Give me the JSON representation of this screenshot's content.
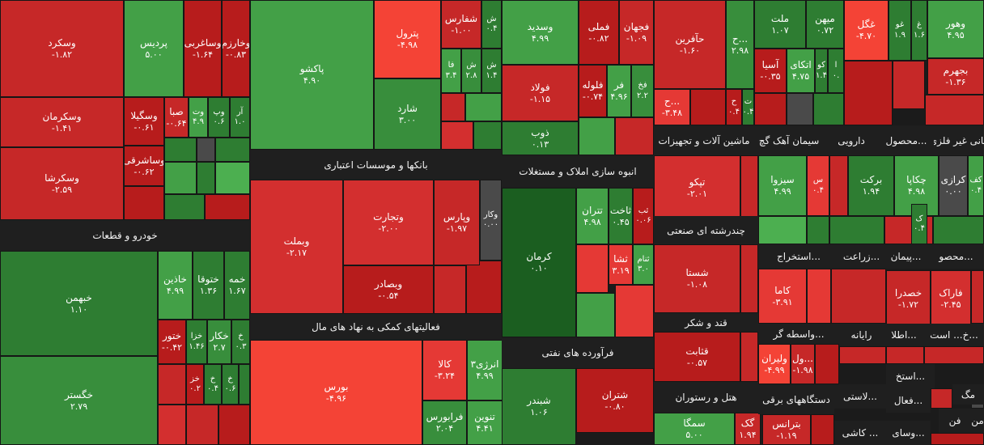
{
  "sectors": [
    {
      "label": "خودرو و قطعات",
      "name": "sector-auto"
    },
    {
      "label": "بانکها و موسسات اعتباری",
      "name": "sector-banks"
    },
    {
      "label": "انبوه سازی املاک و مستغلات",
      "name": "sector-realestate"
    },
    {
      "label": "فعالیتهای کمکی به نهاد های مال",
      "name": "sector-financial-aux"
    },
    {
      "label": "فرآورده های نفتی",
      "name": "sector-petroleum-products"
    },
    {
      "label": "ماشین آلات و تجهیزات",
      "name": "sector-machinery"
    },
    {
      "label": "سیمان آهک گچ",
      "name": "sector-cement"
    },
    {
      "label": "دارویی",
      "name": "sector-pharma"
    },
    {
      "label": "محصول...",
      "name": "sector-products"
    },
    {
      "label": "کانی غیر فلزی",
      "name": "sector-nonmetal-minerals"
    },
    {
      "label": "چندرشته ای صنعتی",
      "name": "sector-multi-industry"
    },
    {
      "label": "استخراج...",
      "name": "sector-mining"
    },
    {
      "label": "زراعت...",
      "name": "sector-agriculture"
    },
    {
      "label": "پیمان...",
      "name": "sector-contracting"
    },
    {
      "label": "محصو...",
      "name": "sector-products-2"
    },
    {
      "label": "قند و شکر",
      "name": "sector-sugar"
    },
    {
      "label": "واسطه گر...",
      "name": "sector-intermediation"
    },
    {
      "label": "رایانه",
      "name": "sector-computer"
    },
    {
      "label": "اطلا...",
      "name": "sector-information"
    },
    {
      "label": "خ... است...",
      "name": "sector-misc"
    },
    {
      "label": "هتل و رستوران",
      "name": "sector-hotel"
    },
    {
      "label": "دستگاههای برقی",
      "name": "sector-electrical"
    },
    {
      "label": "لاستی...",
      "name": "sector-rubber"
    },
    {
      "label": "استخ...",
      "name": "sector-mining-2"
    },
    {
      "label": "فعال...",
      "name": "sector-activity"
    },
    {
      "label": "کاشی ...",
      "name": "sector-tile"
    },
    {
      "label": "وسای...",
      "name": "sector-equipment"
    },
    {
      "label": "مگ",
      "name": "sector-mg"
    },
    {
      "label": "فن",
      "name": "sector-fn"
    },
    {
      "label": "من",
      "name": "sector-mn"
    }
  ],
  "tiles": [
    {
      "name": "وسکرد",
      "value": "-۱.۸۲",
      "color": "#c62828"
    },
    {
      "name": "وسکرمان",
      "value": "-۱.۴۱",
      "color": "#c62828"
    },
    {
      "name": "وسکرشا",
      "value": "-۲.۵۹",
      "color": "#c62828"
    },
    {
      "name": "پردیس",
      "value": "۵.۰۰",
      "color": "#43a047"
    },
    {
      "name": "وساغربی",
      "value": "-۱.۶۴",
      "color": "#b71c1c"
    },
    {
      "name": "وخارزم",
      "value": "-۰.۸۳",
      "color": "#b71c1c"
    },
    {
      "name": "وسگیلا",
      "value": "-۰.۶۱",
      "color": "#b71c1c"
    },
    {
      "name": "صبا",
      "value": "-۰.۶۴",
      "color": "#c62828"
    },
    {
      "name": "وت",
      "value": "۴.۹",
      "color": "#43a047"
    },
    {
      "name": "وپ",
      "value": "۰.۶",
      "color": "#2e7d32"
    },
    {
      "name": "آر",
      "value": "۱.۰",
      "color": "#2e7d32"
    },
    {
      "name": "وساشرقی",
      "value": "-۰.۶۲",
      "color": "#b71c1c"
    },
    {
      "name": "خبهمن",
      "value": "۱.۱۰",
      "color": "#2e7d32"
    },
    {
      "name": "خاذین",
      "value": "۴.۹۹",
      "color": "#43a047"
    },
    {
      "name": "ختوقا",
      "value": "۱.۳۶",
      "color": "#2e7d32"
    },
    {
      "name": "خمه",
      "value": "۱.۶۷",
      "color": "#2e7d32"
    },
    {
      "name": "ختور",
      "value": "-۰.۴۲",
      "color": "#b71c1c"
    },
    {
      "name": "خزا",
      "value": "۱.۴۶",
      "color": "#2e7d32"
    },
    {
      "name": "خکار",
      "value": "۲.۷",
      "color": "#388e3c"
    },
    {
      "name": "خ",
      "value": "۰.۳",
      "color": "#2e7d32"
    },
    {
      "name": "خگستر",
      "value": "۲.۷۹",
      "color": "#388e3c"
    },
    {
      "name": "خز",
      "value": "۰.۲",
      "color": "#b71c1c"
    },
    {
      "name": "خ",
      "value": "۰.۴",
      "color": "#2e7d32"
    },
    {
      "name": "خ",
      "value": "۰.۶",
      "color": "#2e7d32"
    },
    {
      "name": "پاکشو",
      "value": "۴.۹۰",
      "color": "#43a047"
    },
    {
      "name": "پترول",
      "value": "-۴.۹۸",
      "color": "#f44336"
    },
    {
      "name": "شارد",
      "value": "۳.۰۰",
      "color": "#388e3c"
    },
    {
      "name": "شفارس",
      "value": "-۱.۰۰",
      "color": "#c62828"
    },
    {
      "name": "ش",
      "value": "۰.۴",
      "color": "#2e7d32"
    },
    {
      "name": "فا",
      "value": "۳.۴",
      "color": "#43a047"
    },
    {
      "name": "ش",
      "value": "۲.۸",
      "color": "#388e3c"
    },
    {
      "name": "ش",
      "value": "۱.۴",
      "color": "#2e7d32"
    },
    {
      "name": "وبملت",
      "value": "-۲.۱۷",
      "color": "#d32f2f"
    },
    {
      "name": "وتجارت",
      "value": "-۲.۰۰",
      "color": "#d32f2f"
    },
    {
      "name": "وپارس",
      "value": "-۱.۹۷",
      "color": "#c62828"
    },
    {
      "name": "وکار",
      "value": "۰.۰۰",
      "color": "#4a4a4a"
    },
    {
      "name": "وبصادر",
      "value": "-۰.۵۴",
      "color": "#b71c1c"
    },
    {
      "name": "وسدید",
      "value": "۴.۹۹",
      "color": "#43a047"
    },
    {
      "name": "فملی",
      "value": "-۰.۸۲",
      "color": "#b71c1c"
    },
    {
      "name": "فجهان",
      "value": "-۱.۰۹",
      "color": "#c62828"
    },
    {
      "name": "فولاد",
      "value": "-۱.۱۵",
      "color": "#c62828"
    },
    {
      "name": "فلوله",
      "value": "-۰.۷۴",
      "color": "#b71c1c"
    },
    {
      "name": "فر",
      "value": "۴.۹۶",
      "color": "#43a047"
    },
    {
      "name": "فخ",
      "value": "۲.۲",
      "color": "#388e3c"
    },
    {
      "name": "ذوب",
      "value": "۰.۱۳",
      "color": "#2e7d32"
    },
    {
      "name": "حآفرین",
      "value": "-۱.۶۰",
      "color": "#c62828"
    },
    {
      "name": "ح...",
      "value": "۲.۹۸",
      "color": "#388e3c"
    },
    {
      "name": "ح...",
      "value": "-۳.۴۸",
      "color": "#e53935"
    },
    {
      "name": "ح",
      "value": "۰.۴",
      "color": "#b71c1c"
    },
    {
      "name": "ت",
      "value": "۰.۴",
      "color": "#2e7d32"
    },
    {
      "name": "ملت",
      "value": "۱.۰۷",
      "color": "#2e7d32"
    },
    {
      "name": "میهن",
      "value": "۰.۷۲",
      "color": "#2e7d32"
    },
    {
      "name": "آسیا",
      "value": "-۰.۳۵",
      "color": "#b71c1c"
    },
    {
      "name": "اتکای",
      "value": "۴.۷۵",
      "color": "#43a047"
    },
    {
      "name": "کو",
      "value": "۱.۴",
      "color": "#2e7d32"
    },
    {
      "name": "ا",
      "value": "۰.",
      "color": "#2e7d32"
    },
    {
      "name": "غگل",
      "value": "-۴.۷۰",
      "color": "#f44336"
    },
    {
      "name": "غو",
      "value": "۱.۹",
      "color": "#2e7d32"
    },
    {
      "name": "غ",
      "value": "۱.۶",
      "color": "#2e7d32"
    },
    {
      "name": "وهور",
      "value": "۴.۹۵",
      "color": "#43a047"
    },
    {
      "name": "بجهرم",
      "value": "-۱.۳۶",
      "color": "#c62828"
    },
    {
      "name": "کرمان",
      "value": "۰.۱۰",
      "color": "#1b5e20"
    },
    {
      "name": "تتران",
      "value": "۴.۹۸",
      "color": "#43a047"
    },
    {
      "name": "ثاخت",
      "value": "۰.۴۵",
      "color": "#2e7d32"
    },
    {
      "name": "ثب",
      "value": "۰.۰۶",
      "color": "#b71c1c"
    },
    {
      "name": "ثشا",
      "value": "۳.۱۹",
      "color": "#e53935"
    },
    {
      "name": "ثنام",
      "value": "۳.۰",
      "color": "#43a047"
    },
    {
      "name": "بورس",
      "value": "-۴.۹۶",
      "color": "#f44336"
    },
    {
      "name": "کالا",
      "value": "-۳.۲۴",
      "color": "#e53935"
    },
    {
      "name": "انرژی۳",
      "value": "۴.۹۹",
      "color": "#43a047"
    },
    {
      "name": "فرابورس",
      "value": "۲.۰۴",
      "color": "#388e3c"
    },
    {
      "name": "تنوین",
      "value": "۴.۴۱",
      "color": "#43a047"
    },
    {
      "name": "شبندر",
      "value": "۱.۰۶",
      "color": "#2e7d32"
    },
    {
      "name": "شتران",
      "value": "-۰.۸۰",
      "color": "#b71c1c"
    },
    {
      "name": "تپکو",
      "value": "-۲.۰۱",
      "color": "#d32f2f"
    },
    {
      "name": "سیزوا",
      "value": "۴.۹۹",
      "color": "#43a047"
    },
    {
      "name": "س",
      "value": "۰.۴",
      "color": "#e53935"
    },
    {
      "name": "برکت",
      "value": "۱.۹۴",
      "color": "#2e7d32"
    },
    {
      "name": "چکاپا",
      "value": "۴.۹۸",
      "color": "#43a047"
    },
    {
      "name": "ک",
      "value": "۰.۴",
      "color": "#2e7d32"
    },
    {
      "name": "کرازی",
      "value": "۰.۰۰",
      "color": "#4a4a4a"
    },
    {
      "name": "کف",
      "value": "۰.۴",
      "color": "#43a047"
    },
    {
      "name": "شستا",
      "value": "-۱.۰۸",
      "color": "#c62828"
    },
    {
      "name": "کاما",
      "value": "-۳.۹۱",
      "color": "#e53935"
    },
    {
      "name": "خصدرا",
      "value": "-۱.۷۲",
      "color": "#c62828"
    },
    {
      "name": "فاراک",
      "value": "-۲.۴۵",
      "color": "#d32f2f"
    },
    {
      "name": "قثابت",
      "value": "-۰.۵۷",
      "color": "#b71c1c"
    },
    {
      "name": "ولیران",
      "value": "-۴.۹۹",
      "color": "#f44336"
    },
    {
      "name": "ول...",
      "value": "-۱.۹۸",
      "color": "#c62828"
    },
    {
      "name": "سمگا",
      "value": "۵.۰۰",
      "color": "#43a047"
    },
    {
      "name": "گک",
      "value": "۱.۹۴",
      "color": "#c62828"
    },
    {
      "name": "بترانس",
      "value": "-۱.۱۹",
      "color": "#c62828"
    }
  ],
  "colors": {
    "sector_label_bg": "#1f1f1f",
    "sector_label_text": "#f2f2f2",
    "neutral": "#4a4a4a"
  }
}
